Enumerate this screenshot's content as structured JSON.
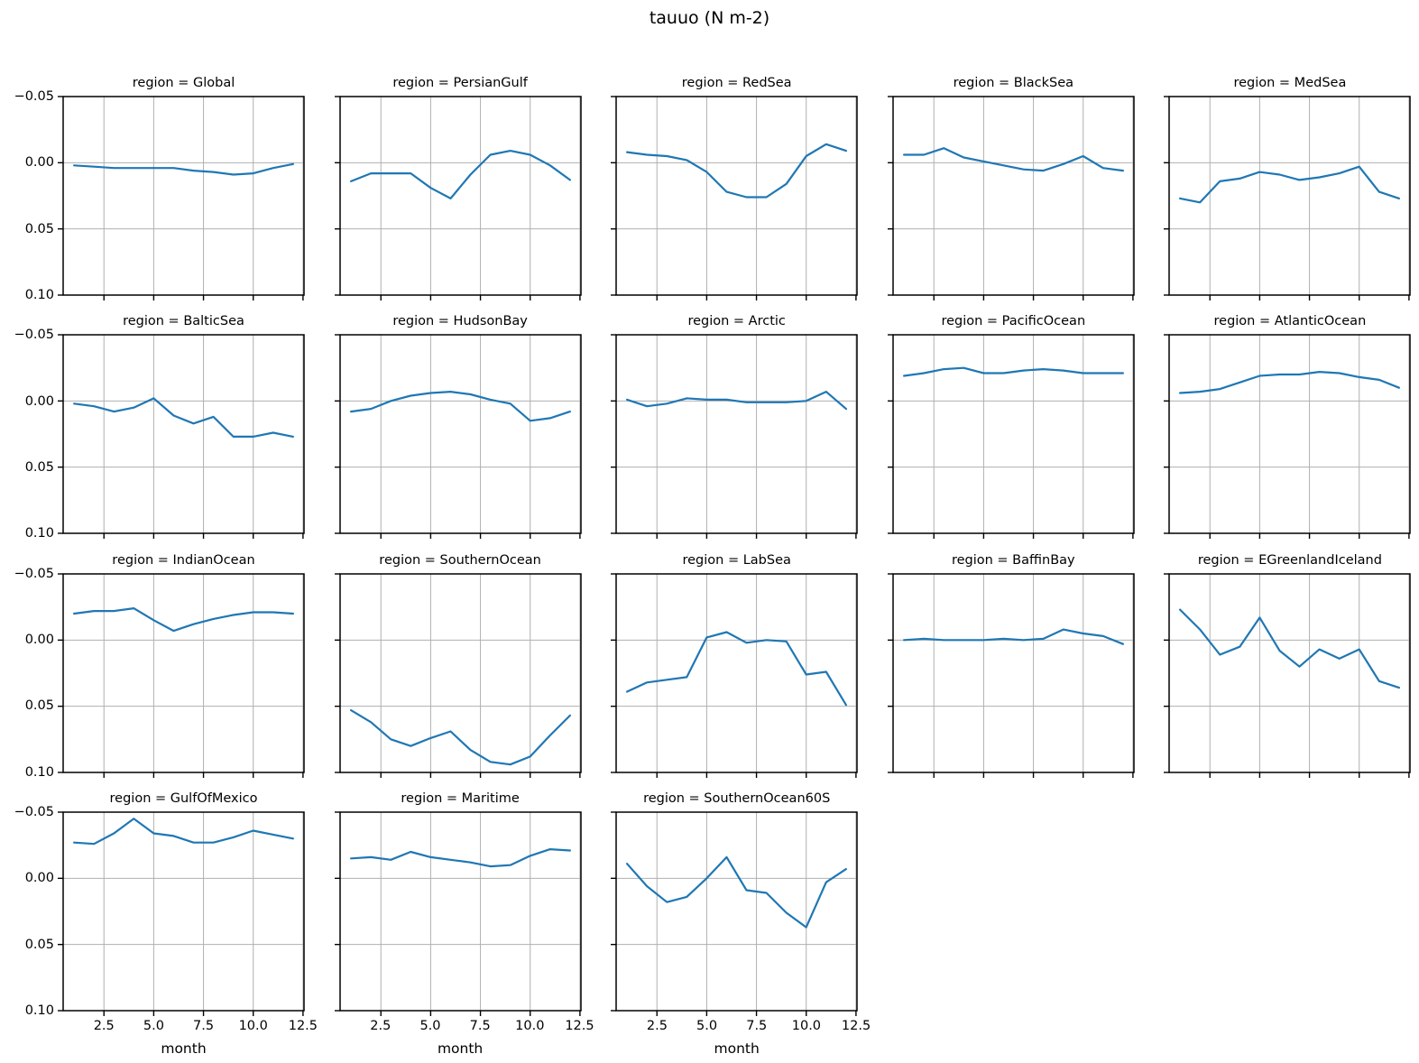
{
  "figure_title": "tauuo (N m-2)",
  "chart_data": {
    "type": "line",
    "title": "tauuo (N m-2)",
    "facet_variable": "region",
    "facet_title_prefix": "region = ",
    "columns": 5,
    "x": [
      1,
      2,
      3,
      4,
      5,
      6,
      7,
      8,
      9,
      10,
      11,
      12
    ],
    "xlabel": "month",
    "xlim": [
      0.45,
      12.55
    ],
    "x_ticks": [
      2.5,
      5.0,
      7.5,
      10.0,
      12.5
    ],
    "x_tick_labels": [
      "2.5",
      "5.0",
      "7.5",
      "10.0",
      "12.5"
    ],
    "ylim_top_to_bottom": [
      -0.05,
      0.1
    ],
    "y_axis_inverted": true,
    "y_ticks": [
      -0.05,
      0.0,
      0.05,
      0.1
    ],
    "y_tick_labels": [
      "−0.05",
      "0.00",
      "0.05",
      "0.10"
    ],
    "grid": true,
    "legend": "none",
    "line_color": "#1f77b4",
    "grid_color": "#b0b0b0",
    "spine_color": "#000000",
    "series": [
      {
        "region": "Global",
        "values": [
          0.002,
          0.003,
          0.004,
          0.004,
          0.004,
          0.004,
          0.006,
          0.007,
          0.009,
          0.008,
          0.004,
          0.001
        ]
      },
      {
        "region": "PersianGulf",
        "values": [
          0.014,
          0.008,
          0.008,
          0.008,
          0.019,
          0.027,
          0.009,
          -0.006,
          -0.009,
          -0.006,
          0.002,
          0.013
        ]
      },
      {
        "region": "RedSea",
        "values": [
          -0.008,
          -0.006,
          -0.005,
          -0.002,
          0.007,
          0.022,
          0.026,
          0.026,
          0.016,
          -0.005,
          -0.014,
          -0.009
        ]
      },
      {
        "region": "BlackSea",
        "values": [
          -0.006,
          -0.006,
          -0.011,
          -0.004,
          -0.001,
          0.002,
          0.005,
          0.006,
          0.001,
          -0.005,
          0.004,
          0.006
        ]
      },
      {
        "region": "MedSea",
        "values": [
          0.027,
          0.03,
          0.014,
          0.012,
          0.007,
          0.009,
          0.013,
          0.011,
          0.008,
          0.003,
          0.022,
          0.027
        ]
      },
      {
        "region": "BalticSea",
        "values": [
          0.002,
          0.004,
          0.008,
          0.005,
          -0.002,
          0.011,
          0.017,
          0.012,
          0.027,
          0.027,
          0.024,
          0.027
        ]
      },
      {
        "region": "HudsonBay",
        "values": [
          0.008,
          0.006,
          0.0,
          -0.004,
          -0.006,
          -0.007,
          -0.005,
          -0.001,
          0.002,
          0.015,
          0.013,
          0.008
        ]
      },
      {
        "region": "Arctic",
        "values": [
          -0.001,
          0.004,
          0.002,
          -0.002,
          -0.001,
          -0.001,
          0.001,
          0.001,
          0.001,
          0.0,
          -0.007,
          0.006
        ]
      },
      {
        "region": "PacificOcean",
        "values": [
          -0.019,
          -0.021,
          -0.024,
          -0.025,
          -0.021,
          -0.021,
          -0.023,
          -0.024,
          -0.023,
          -0.021,
          -0.021,
          -0.021
        ]
      },
      {
        "region": "AtlanticOcean",
        "values": [
          -0.006,
          -0.007,
          -0.009,
          -0.014,
          -0.019,
          -0.02,
          -0.02,
          -0.022,
          -0.021,
          -0.018,
          -0.016,
          -0.01
        ]
      },
      {
        "region": "IndianOcean",
        "values": [
          -0.02,
          -0.022,
          -0.022,
          -0.024,
          -0.015,
          -0.007,
          -0.012,
          -0.016,
          -0.019,
          -0.021,
          -0.021,
          -0.02
        ]
      },
      {
        "region": "SouthernOcean",
        "values": [
          0.053,
          0.062,
          0.075,
          0.08,
          0.074,
          0.069,
          0.083,
          0.092,
          0.094,
          0.088,
          0.072,
          0.057
        ]
      },
      {
        "region": "LabSea",
        "values": [
          0.039,
          0.032,
          0.03,
          0.028,
          -0.002,
          -0.006,
          0.002,
          0.0,
          0.001,
          0.026,
          0.024,
          0.049
        ]
      },
      {
        "region": "BaffinBay",
        "values": [
          0.0,
          -0.001,
          0.0,
          0.0,
          0.0,
          -0.001,
          0.0,
          -0.001,
          -0.008,
          -0.005,
          -0.003,
          0.003
        ]
      },
      {
        "region": "EGreenlandIceland",
        "values": [
          -0.023,
          -0.008,
          0.011,
          0.005,
          -0.017,
          0.008,
          0.02,
          0.007,
          0.014,
          0.007,
          0.031,
          0.036
        ]
      },
      {
        "region": "GulfOfMexico",
        "values": [
          -0.027,
          -0.026,
          -0.034,
          -0.045,
          -0.034,
          -0.032,
          -0.027,
          -0.027,
          -0.031,
          -0.036,
          -0.033,
          -0.03
        ]
      },
      {
        "region": "Maritime",
        "values": [
          -0.015,
          -0.016,
          -0.014,
          -0.02,
          -0.016,
          -0.014,
          -0.012,
          -0.009,
          -0.01,
          -0.017,
          -0.022,
          -0.021
        ]
      },
      {
        "region": "SouthernOcean60S",
        "values": [
          -0.011,
          0.006,
          0.018,
          0.014,
          0.0,
          -0.016,
          0.009,
          0.011,
          0.026,
          0.037,
          0.003,
          -0.007
        ]
      }
    ]
  }
}
